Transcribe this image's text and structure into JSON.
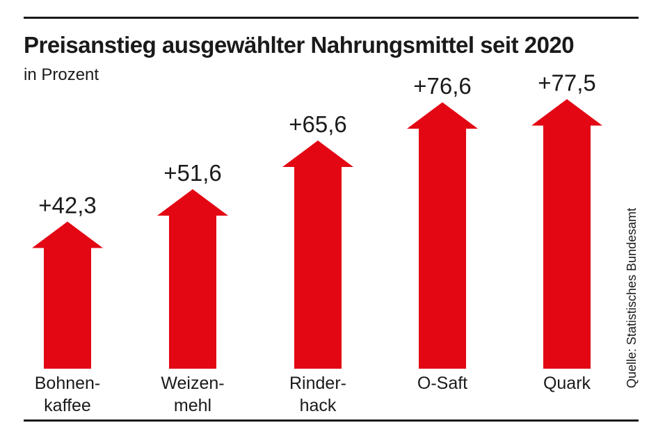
{
  "chart_data": {
    "type": "bar",
    "title": "Preisanstieg ausgewählter Nahrungsmittel seit 2020",
    "subtitle": "in Prozent",
    "ylabel": "Prozent",
    "categories": [
      [
        "Bohnen-",
        "kaffee"
      ],
      [
        "Weizen-",
        "mehl"
      ],
      [
        "Rinder-",
        "hack"
      ],
      [
        "O-Saft"
      ],
      [
        "Quark"
      ]
    ],
    "values": [
      42.3,
      51.6,
      65.6,
      76.6,
      77.5
    ],
    "value_labels": [
      "+42,3",
      "+51,6",
      "+65,6",
      "+76,6",
      "+77,5"
    ],
    "ylim": [
      0,
      80
    ],
    "grid": false,
    "bar_color": "#e30613"
  },
  "source": "Quelle: Statistisches Bundesamt"
}
